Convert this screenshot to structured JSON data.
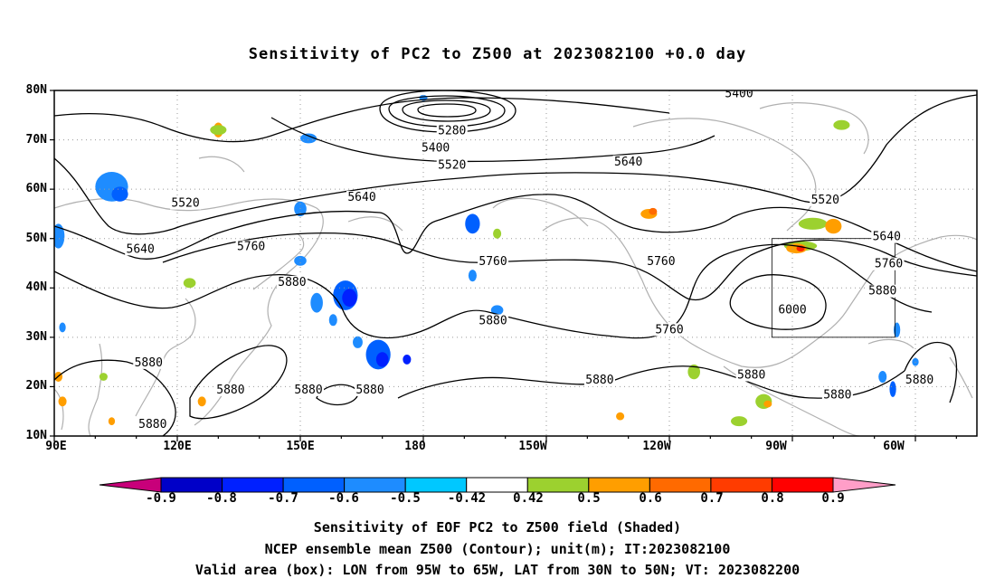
{
  "title": "Sensitivity of PC2 to Z500 at 2023082100 +0.0 day",
  "map": {
    "lat_labels": [
      "80N",
      "70N",
      "60N",
      "50N",
      "40N",
      "30N",
      "20N",
      "10N"
    ],
    "lon_labels": [
      "90E",
      "120E",
      "150E",
      "180",
      "150W",
      "120W",
      "90W",
      "60W"
    ],
    "contour_labels": [
      {
        "text": "5400",
        "lat": 79,
        "lon": -103
      },
      {
        "text": "5280",
        "lat": 71.5,
        "lon": -173
      },
      {
        "text": "5400",
        "lat": 68,
        "lon": -177
      },
      {
        "text": "5520",
        "lat": 64.5,
        "lon": -173
      },
      {
        "text": "5640",
        "lat": 65.2,
        "lon": -130
      },
      {
        "text": "5520",
        "lat": 56.8,
        "lon": 122
      },
      {
        "text": "5640",
        "lat": 58,
        "lon": 165
      },
      {
        "text": "5520",
        "lat": 57.5,
        "lon": -82
      },
      {
        "text": "5640",
        "lat": 47.5,
        "lon": 111
      },
      {
        "text": "5760",
        "lat": 48,
        "lon": 138
      },
      {
        "text": "5760",
        "lat": 45,
        "lon": -163
      },
      {
        "text": "5760",
        "lat": 45,
        "lon": -122
      },
      {
        "text": "5640",
        "lat": 50,
        "lon": -67
      },
      {
        "text": "5760",
        "lat": 44.5,
        "lon": -66.5
      },
      {
        "text": "5880",
        "lat": 40.8,
        "lon": 148
      },
      {
        "text": "5880",
        "lat": 39,
        "lon": -68
      },
      {
        "text": "6000",
        "lat": 35.2,
        "lon": -90
      },
      {
        "text": "5880",
        "lat": 33,
        "lon": -163
      },
      {
        "text": "5760",
        "lat": 31.2,
        "lon": -120
      },
      {
        "text": "5880",
        "lat": 24.5,
        "lon": 113
      },
      {
        "text": "5880",
        "lat": 19,
        "lon": 133
      },
      {
        "text": "5880",
        "lat": 19,
        "lon": 152
      },
      {
        "text": "5880",
        "lat": 19,
        "lon": 167
      },
      {
        "text": "5880",
        "lat": 21,
        "lon": -137
      },
      {
        "text": "5880",
        "lat": 22,
        "lon": -100
      },
      {
        "text": "5880",
        "lat": 21,
        "lon": -59
      },
      {
        "text": "5880",
        "lat": 18,
        "lon": -79
      },
      {
        "text": "5880",
        "lat": 12,
        "lon": 114
      }
    ],
    "valid_box": {
      "lon_west": -95,
      "lon_east": -65,
      "lat_south": 30,
      "lat_north": 50
    },
    "shaded_blobs": [
      {
        "lat": 60.5,
        "lon": 104,
        "rlat": 3,
        "rlon": 4,
        "color": "#1e8cff"
      },
      {
        "lat": 59,
        "lon": 106,
        "rlat": 1.5,
        "rlon": 2,
        "color": "#0060ff"
      },
      {
        "lat": 50.5,
        "lon": 91,
        "rlat": 2.5,
        "rlon": 1.5,
        "color": "#1e8cff"
      },
      {
        "lat": 72,
        "lon": 130,
        "rlat": 1.5,
        "rlon": 1.2,
        "color": "#ff9e00"
      },
      {
        "lat": 72,
        "lon": 130,
        "rlat": 1,
        "rlon": 2,
        "color": "#9cd12f"
      },
      {
        "lat": 70.3,
        "lon": 152,
        "rlat": 1,
        "rlon": 2,
        "color": "#1e8cff"
      },
      {
        "lat": 78.5,
        "lon": 180,
        "rlat": 0.6,
        "rlon": 1,
        "color": "#1e8cff"
      },
      {
        "lat": 56,
        "lon": 150,
        "rlat": 1.5,
        "rlon": 1.5,
        "color": "#1e8cff"
      },
      {
        "lat": 58.5,
        "lon": 164,
        "rlat": 0.8,
        "rlon": 1,
        "color": "#1e8cff"
      },
      {
        "lat": 53,
        "lon": -168,
        "rlat": 2,
        "rlon": 1.8,
        "color": "#0060ff"
      },
      {
        "lat": 45.5,
        "lon": 150,
        "rlat": 1,
        "rlon": 1.5,
        "color": "#1e8cff"
      },
      {
        "lat": 38.5,
        "lon": 161,
        "rlat": 3,
        "rlon": 3,
        "color": "#0060ff"
      },
      {
        "lat": 38,
        "lon": 162,
        "rlat": 1.8,
        "rlon": 1.8,
        "color": "#0020ff"
      },
      {
        "lat": 37,
        "lon": 154,
        "rlat": 2,
        "rlon": 1.5,
        "color": "#1e8cff"
      },
      {
        "lat": 33.5,
        "lon": 158,
        "rlat": 1.2,
        "rlon": 1,
        "color": "#1e8cff"
      },
      {
        "lat": 26.5,
        "lon": 169,
        "rlat": 3,
        "rlon": 3,
        "color": "#0060ff"
      },
      {
        "lat": 25.5,
        "lon": 170,
        "rlat": 1.5,
        "rlon": 1.5,
        "color": "#0020ff"
      },
      {
        "lat": 29,
        "lon": 164,
        "rlat": 1.2,
        "rlon": 1.2,
        "color": "#1e8cff"
      },
      {
        "lat": 25.5,
        "lon": 176,
        "rlat": 1,
        "rlon": 1,
        "color": "#0020ff"
      },
      {
        "lat": 42.5,
        "lon": -168,
        "rlat": 1.2,
        "rlon": 1,
        "color": "#1e8cff"
      },
      {
        "lat": 35.5,
        "lon": -162,
        "rlat": 1,
        "rlon": 1.5,
        "color": "#1e8cff"
      },
      {
        "lat": 51,
        "lon": -162,
        "rlat": 1,
        "rlon": 1,
        "color": "#9cd12f"
      },
      {
        "lat": 55,
        "lon": -125,
        "rlat": 1,
        "rlon": 2,
        "color": "#ff9e00"
      },
      {
        "lat": 55.5,
        "lon": -124,
        "rlat": 0.7,
        "rlon": 1,
        "color": "#ff6a00"
      },
      {
        "lat": 73,
        "lon": -78,
        "rlat": 1,
        "rlon": 2,
        "color": "#9cd12f"
      },
      {
        "lat": 53,
        "lon": -85,
        "rlat": 1.2,
        "rlon": 3.5,
        "color": "#9cd12f"
      },
      {
        "lat": 52.5,
        "lon": -80,
        "rlat": 1.5,
        "rlon": 2,
        "color": "#ff9e00"
      },
      {
        "lat": 48.5,
        "lon": -88,
        "rlat": 1,
        "rlon": 4,
        "color": "#9cd12f"
      },
      {
        "lat": 48,
        "lon": -89,
        "rlat": 1,
        "rlon": 2.5,
        "color": "#ff9e00"
      },
      {
        "lat": 48,
        "lon": -88,
        "rlat": 0.6,
        "rlon": 1,
        "color": "#ff2000"
      },
      {
        "lat": 31.5,
        "lon": -64.5,
        "rlat": 1.5,
        "rlon": 0.8,
        "color": "#1e8cff"
      },
      {
        "lat": 22,
        "lon": -68,
        "rlat": 1.2,
        "rlon": 1,
        "color": "#1e8cff"
      },
      {
        "lat": 19.5,
        "lon": -65.5,
        "rlat": 1.6,
        "rlon": 0.8,
        "color": "#0060ff"
      },
      {
        "lat": 23,
        "lon": -114,
        "rlat": 1.5,
        "rlon": 1.5,
        "color": "#9cd12f"
      },
      {
        "lat": 17,
        "lon": -97,
        "rlat": 1.5,
        "rlon": 2,
        "color": "#9cd12f"
      },
      {
        "lat": 16.5,
        "lon": -96,
        "rlat": 0.7,
        "rlon": 1,
        "color": "#ff9e00"
      },
      {
        "lat": 13,
        "lon": -103,
        "rlat": 1,
        "rlon": 2,
        "color": "#9cd12f"
      },
      {
        "lat": 14,
        "lon": -132,
        "rlat": 0.8,
        "rlon": 1,
        "color": "#ff9e00"
      },
      {
        "lat": 22,
        "lon": 91,
        "rlat": 1,
        "rlon": 1,
        "color": "#ff9e00"
      },
      {
        "lat": 17,
        "lon": 92,
        "rlat": 1,
        "rlon": 1,
        "color": "#ff9e00"
      },
      {
        "lat": 13,
        "lon": 104,
        "rlat": 0.8,
        "rlon": 0.8,
        "color": "#ff9e00"
      },
      {
        "lat": 32,
        "lon": 92,
        "rlat": 1,
        "rlon": 0.8,
        "color": "#1e8cff"
      },
      {
        "lat": 41,
        "lon": 123,
        "rlat": 1,
        "rlon": 1.5,
        "color": "#9cd12f"
      },
      {
        "lat": 17,
        "lon": 126,
        "rlat": 1,
        "rlon": 1,
        "color": "#ff9e00"
      },
      {
        "lat": 22,
        "lon": 102,
        "rlat": 0.8,
        "rlon": 1,
        "color": "#9cd12f"
      },
      {
        "lat": 25,
        "lon": -60,
        "rlat": 0.8,
        "rlon": 0.8,
        "color": "#1e8cff"
      }
    ]
  },
  "colorbar": {
    "labels": [
      "-0.9",
      "-0.8",
      "-0.7",
      "-0.6",
      "-0.5",
      "-0.42",
      "0.42",
      "0.5",
      "0.6",
      "0.7",
      "0.8",
      "0.9"
    ],
    "colors": [
      "#0000c8",
      "#0020ff",
      "#0060ff",
      "#1e8cff",
      "#00c8ff",
      "#ffffff",
      "#9cd12f",
      "#ff9e00",
      "#ff6a00",
      "#ff3c00",
      "#ff0000"
    ],
    "low_arrow_color": "#c8007a",
    "high_arrow_color": "#ff9ec8"
  },
  "captions": [
    "Sensitivity of EOF PC2 to Z500 field (Shaded)",
    "NCEP ensemble mean Z500 (Contour); unit(m); IT:2023082100",
    "Valid area (box): LON from 95W to 65W, LAT from 30N to 50N; VT: 2023082200"
  ]
}
